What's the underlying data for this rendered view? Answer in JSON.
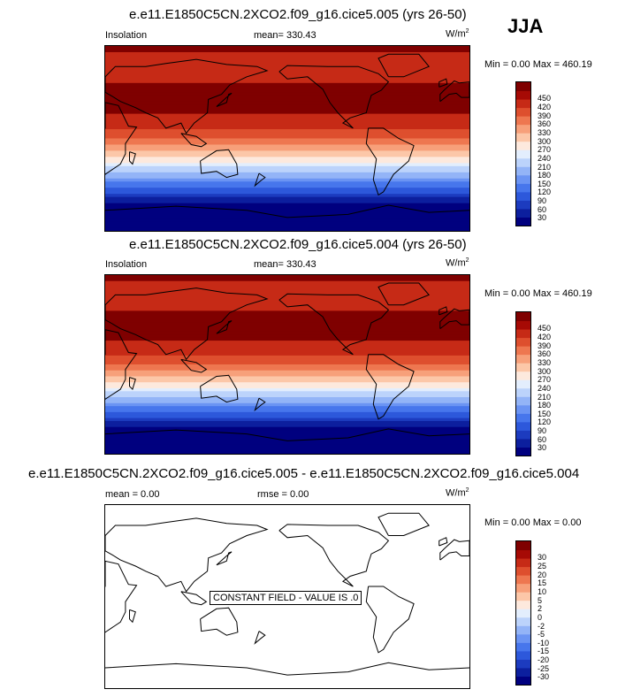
{
  "season": "JJA",
  "panels": [
    {
      "title": "e.e11.E1850C5CN.2XCO2.f09_g16.cice5.005 (yrs 26-50)",
      "left_label": "Insolation",
      "center_label": "mean= 330.43",
      "units": "W/m",
      "units_sup": "2",
      "minmax": "Min =   0.00 Max = 460.19"
    },
    {
      "title": "e.e11.E1850C5CN.2XCO2.f09_g16.cice5.004 (yrs 26-50)",
      "left_label": "Insolation",
      "center_label": "mean= 330.43",
      "units": "W/m",
      "units_sup": "2",
      "minmax": "Min =   0.00 Max = 460.19"
    },
    {
      "title": "e.e11.E1850C5CN.2XCO2.f09_g16.cice5.005 - e.e11.E1850C5CN.2XCO2.f09_g16.cice5.004",
      "left_label": "mean =   0.00",
      "center_label": "rmse =   0.00",
      "units": "W/m",
      "units_sup": "2",
      "minmax": "Min =   0.00 Max =   0.00",
      "note": "CONSTANT FIELD - VALUE IS .0"
    }
  ],
  "chart_data": [
    {
      "type": "heatmap",
      "variable": "Insolation",
      "mean": 330.43,
      "min": 0.0,
      "max": 460.19,
      "colorbar_levels": [
        30,
        60,
        90,
        120,
        150,
        180,
        210,
        240,
        270,
        300,
        330,
        360,
        390,
        420,
        450
      ],
      "colorbar_labels": [
        "30",
        "60",
        "90",
        "120",
        "150",
        "180",
        "210",
        "240",
        "270",
        "300",
        "330",
        "360",
        "390",
        "420",
        "450"
      ],
      "colors": [
        "#00007f",
        "#0c1f9e",
        "#1c3bbf",
        "#2d58db",
        "#4776ec",
        "#6b94f3",
        "#93b4f7",
        "#bcd3fb",
        "#e3eefd",
        "#fde9dd",
        "#fcc7a8",
        "#f7a07a",
        "#ee7750",
        "#de4f2e",
        "#c62a16",
        "#a60a05",
        "#7f0000"
      ],
      "zonal_profile": [
        {
          "lat": 90,
          "value": 460
        },
        {
          "lat": 80,
          "value": 445
        },
        {
          "lat": 70,
          "value": 435
        },
        {
          "lat": 60,
          "value": 440
        },
        {
          "lat": 50,
          "value": 455
        },
        {
          "lat": 40,
          "value": 462
        },
        {
          "lat": 30,
          "value": 460
        },
        {
          "lat": 20,
          "value": 445
        },
        {
          "lat": 10,
          "value": 420
        },
        {
          "lat": 0,
          "value": 385
        },
        {
          "lat": -10,
          "value": 340
        },
        {
          "lat": -20,
          "value": 290
        },
        {
          "lat": -30,
          "value": 230
        },
        {
          "lat": -40,
          "value": 170
        },
        {
          "lat": -50,
          "value": 105
        },
        {
          "lat": -60,
          "value": 45
        },
        {
          "lat": -70,
          "value": 5
        },
        {
          "lat": -80,
          "value": 0
        },
        {
          "lat": -90,
          "value": 0
        }
      ]
    },
    {
      "type": "heatmap",
      "variable": "Insolation",
      "mean": 330.43,
      "min": 0.0,
      "max": 460.19,
      "colorbar_levels": [
        30,
        60,
        90,
        120,
        150,
        180,
        210,
        240,
        270,
        300,
        330,
        360,
        390,
        420,
        450
      ],
      "colorbar_labels": [
        "30",
        "60",
        "90",
        "120",
        "150",
        "180",
        "210",
        "240",
        "270",
        "300",
        "330",
        "360",
        "390",
        "420",
        "450"
      ],
      "colors": [
        "#00007f",
        "#0c1f9e",
        "#1c3bbf",
        "#2d58db",
        "#4776ec",
        "#6b94f3",
        "#93b4f7",
        "#bcd3fb",
        "#e3eefd",
        "#fde9dd",
        "#fcc7a8",
        "#f7a07a",
        "#ee7750",
        "#de4f2e",
        "#c62a16",
        "#a60a05",
        "#7f0000"
      ],
      "zonal_profile": [
        {
          "lat": 90,
          "value": 460
        },
        {
          "lat": 80,
          "value": 445
        },
        {
          "lat": 70,
          "value": 435
        },
        {
          "lat": 60,
          "value": 440
        },
        {
          "lat": 50,
          "value": 455
        },
        {
          "lat": 40,
          "value": 462
        },
        {
          "lat": 30,
          "value": 460
        },
        {
          "lat": 20,
          "value": 445
        },
        {
          "lat": 10,
          "value": 420
        },
        {
          "lat": 0,
          "value": 385
        },
        {
          "lat": -10,
          "value": 340
        },
        {
          "lat": -20,
          "value": 290
        },
        {
          "lat": -30,
          "value": 230
        },
        {
          "lat": -40,
          "value": 170
        },
        {
          "lat": -50,
          "value": 105
        },
        {
          "lat": -60,
          "value": 45
        },
        {
          "lat": -70,
          "value": 5
        },
        {
          "lat": -80,
          "value": 0
        },
        {
          "lat": -90,
          "value": 0
        }
      ]
    },
    {
      "type": "heatmap",
      "mean": 0.0,
      "rmse": 0.0,
      "min": 0.0,
      "max": 0.0,
      "constant_value": 0,
      "colorbar_levels": [
        -30,
        -25,
        -20,
        -15,
        -10,
        -5,
        -2,
        0,
        2,
        5,
        10,
        15,
        20,
        25,
        30
      ],
      "colorbar_labels": [
        "-30",
        "-25",
        "-20",
        "-15",
        "-10",
        "-5",
        "-2",
        "0",
        "2",
        "5",
        "10",
        "15",
        "20",
        "25",
        "30"
      ],
      "colors": [
        "#00007f",
        "#0c1f9e",
        "#1c3bbf",
        "#2d58db",
        "#4776ec",
        "#6b94f3",
        "#93b4f7",
        "#bcd3fb",
        "#e3eefd",
        "#fde9dd",
        "#fcc7a8",
        "#f7a07a",
        "#ee7750",
        "#de4f2e",
        "#c62a16",
        "#a60a05",
        "#7f0000"
      ]
    }
  ]
}
